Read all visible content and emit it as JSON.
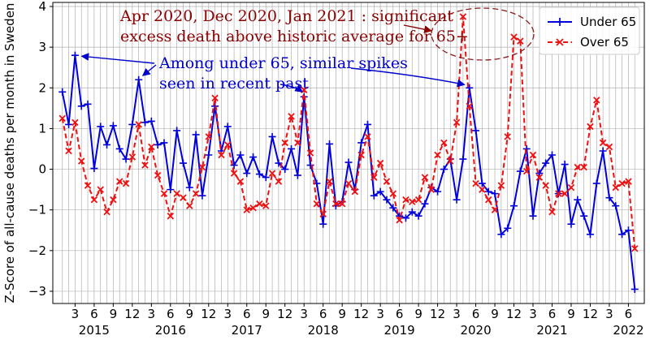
{
  "chart_data": {
    "type": "line",
    "ylabel": "Z-Score of all-cause deaths per month in Sweden",
    "ylim": [
      -3.3,
      4.1
    ],
    "yticks": [
      -3,
      -2,
      -1,
      0,
      1,
      2,
      3,
      4
    ],
    "x_start": "2015-01",
    "xticks": [
      {
        "i": 2,
        "label": "3"
      },
      {
        "i": 5,
        "label": "6"
      },
      {
        "i": 8,
        "label": "9"
      },
      {
        "i": 11,
        "label": "12"
      },
      {
        "i": 14,
        "label": "3"
      },
      {
        "i": 17,
        "label": "6"
      },
      {
        "i": 20,
        "label": "9"
      },
      {
        "i": 23,
        "label": "12"
      },
      {
        "i": 26,
        "label": "3"
      },
      {
        "i": 29,
        "label": "6"
      },
      {
        "i": 32,
        "label": "9"
      },
      {
        "i": 35,
        "label": "12"
      },
      {
        "i": 38,
        "label": "3"
      },
      {
        "i": 41,
        "label": "6"
      },
      {
        "i": 44,
        "label": "9"
      },
      {
        "i": 47,
        "label": "12"
      },
      {
        "i": 50,
        "label": "3"
      },
      {
        "i": 53,
        "label": "6"
      },
      {
        "i": 56,
        "label": "9"
      },
      {
        "i": 59,
        "label": "12"
      },
      {
        "i": 62,
        "label": "3"
      },
      {
        "i": 65,
        "label": "6"
      },
      {
        "i": 68,
        "label": "9"
      },
      {
        "i": 71,
        "label": "12"
      },
      {
        "i": 74,
        "label": "3"
      },
      {
        "i": 77,
        "label": "6"
      },
      {
        "i": 80,
        "label": "9"
      },
      {
        "i": 83,
        "label": "12"
      },
      {
        "i": 86,
        "label": "3"
      },
      {
        "i": 89,
        "label": "6"
      }
    ],
    "year_labels": [
      {
        "i": 5,
        "label": "2015"
      },
      {
        "i": 17,
        "label": "2016"
      },
      {
        "i": 29,
        "label": "2017"
      },
      {
        "i": 41,
        "label": "2018"
      },
      {
        "i": 53,
        "label": "2019"
      },
      {
        "i": 65,
        "label": "2020"
      },
      {
        "i": 77,
        "label": "2021"
      },
      {
        "i": 89,
        "label": "2022"
      }
    ],
    "grid": true,
    "legend_position": "top-right",
    "series": [
      {
        "name": "Under 65",
        "color": "#0000dd",
        "marker": "plus",
        "values": [
          1.9,
          1.1,
          2.8,
          1.55,
          1.6,
          0.02,
          1.05,
          0.6,
          1.07,
          0.5,
          0.25,
          1.1,
          2.2,
          1.15,
          1.18,
          0.6,
          0.65,
          -0.5,
          0.95,
          0.15,
          -0.45,
          0.85,
          -0.65,
          0.35,
          1.55,
          0.45,
          1.05,
          0.1,
          0.35,
          -0.1,
          0.3,
          -0.12,
          -0.2,
          0.8,
          0.15,
          0.0,
          0.5,
          -0.15,
          1.78,
          0.1,
          -0.35,
          -1.35,
          0.62,
          -0.9,
          -0.8,
          0.17,
          -0.5,
          0.65,
          1.1,
          -0.65,
          -0.55,
          -0.75,
          -0.95,
          -1.15,
          -1.2,
          -1.05,
          -1.15,
          -0.85,
          -0.45,
          -0.55,
          0.0,
          0.25,
          -0.75,
          0.25,
          2.0,
          0.95,
          -0.35,
          -0.55,
          -0.6,
          -1.6,
          -1.45,
          -0.9,
          -0.05,
          0.5,
          -1.15,
          -0.1,
          0.15,
          0.35,
          -0.6,
          0.12,
          -1.35,
          -0.75,
          -1.15,
          -1.6,
          -0.35,
          0.45,
          -0.7,
          -0.9,
          -1.6,
          -1.5,
          -2.95
        ]
      },
      {
        "name": "Over 65",
        "color": "#ee1111",
        "marker": "x",
        "values": [
          1.25,
          0.45,
          1.15,
          0.2,
          -0.4,
          -0.75,
          -0.5,
          -1.05,
          -0.75,
          -0.3,
          -0.35,
          0.3,
          1.1,
          0.1,
          0.55,
          -0.15,
          -0.6,
          -1.15,
          -0.6,
          -0.7,
          -0.9,
          -0.6,
          0.05,
          0.8,
          1.75,
          0.35,
          0.6,
          -0.1,
          -0.3,
          -1.0,
          -0.95,
          -0.85,
          -0.9,
          -0.1,
          -0.3,
          0.65,
          1.3,
          0.65,
          1.95,
          0.4,
          -0.85,
          -1.1,
          -0.3,
          -0.85,
          -0.85,
          -0.35,
          -0.55,
          0.35,
          0.8,
          -0.2,
          0.15,
          -0.3,
          -0.6,
          -1.25,
          -0.75,
          -0.8,
          -0.75,
          -0.2,
          -0.5,
          0.35,
          0.65,
          0.2,
          1.15,
          3.75,
          1.55,
          -0.35,
          -0.5,
          -0.75,
          -1.0,
          -0.4,
          0.8,
          3.25,
          3.15,
          -0.05,
          0.35,
          -0.2,
          -0.4,
          -1.05,
          -0.6,
          -0.6,
          -0.45,
          0.05,
          0.05,
          1.05,
          1.7,
          0.65,
          0.55,
          -0.45,
          -0.35,
          -0.3,
          -1.95
        ]
      }
    ],
    "annotations": [
      {
        "id": "covid",
        "lines": [
          "Apr 2020, Dec 2020, Jan 2021 : significant",
          "excess death above historic average for 65+"
        ]
      },
      {
        "id": "under65",
        "lines": [
          "Among under 65, similar spikes",
          "seen in recent past"
        ]
      }
    ]
  }
}
